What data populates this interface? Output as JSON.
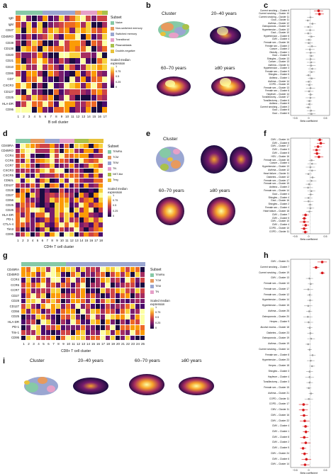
{
  "panels": {
    "a": {
      "letter": "a",
      "xlabel": "B cell cluster",
      "rows": [
        "IgD",
        "IgM",
        "CD27",
        "CD45RO",
        "CD38",
        "CD138",
        "CD20",
        "CD21",
        "CD10",
        "CD86",
        "CD7",
        "CXCR3",
        "CD127",
        "CD25",
        "HLA-DR",
        "CD95"
      ],
      "cols": [
        "1",
        "2",
        "3",
        "4",
        "5",
        "6",
        "7",
        "8",
        "9",
        "10",
        "11",
        "12",
        "13",
        "14",
        "15",
        "16",
        "17"
      ],
      "subset_title": "Subset",
      "subsets": [
        "Naive",
        "Non-switched memory",
        "Switched memory",
        "Transitional",
        "Plasmablasts",
        "Double-negative"
      ],
      "scale_title": "Scaled median expression",
      "scale_ticks": [
        "1",
        "0.75",
        "0.5",
        "0.25",
        "0"
      ]
    },
    "b": {
      "letter": "b",
      "titles": [
        "Cluster",
        "20–40 years",
        "60–70 years",
        "≥80 years"
      ]
    },
    "c": {
      "letter": "c",
      "xlabel": "Beta coefficient",
      "ticks": [
        "−0.5",
        "0",
        "0.5"
      ],
      "labels": [
        "Current smoking – Cluster 6",
        "Current smoking – Cluster 10",
        "Current smoking – Cluster 11",
        "Gout – Cluster 11",
        "Asthma – Cluster 12",
        "Osteoporosis – Cluster 13",
        "Hypertension – Cluster 12",
        "Gout – Cluster 10",
        "Hypertension – Cluster 8",
        "CMV – Cluster 4",
        "Female sex – Cluster 16",
        "Female sex – Cluster 2",
        "Cancer – Cluster 2",
        "Obesity – Cluster 1",
        "Gout – Cluster 5",
        "Shingles – Cluster 13",
        "Cancer – Cluster 13",
        "Asthma – Cluster 11",
        "Hypertension – Cluster 3",
        "Female sex – Cluster 9",
        "Shingles – Cluster 6",
        "Asthma – Cluster 1",
        "Asthma – Cluster 14",
        "COPD – Cluster 10",
        "Female sex – Cluster 13",
        "Female sex – Cluster 6",
        "Hayfever – Cluster 14",
        "Tonsillectomy – Cluster 17",
        "Tonsillectomy – Cluster 6",
        "Asthma – Cluster 8",
        "Current smoking – Cluster 2",
        "Gout – Cluster 8",
        "Gout – Cluster 6"
      ]
    },
    "d": {
      "letter": "d",
      "xlabel": "CD4+ T cell cluster",
      "rows": [
        "CD45RA",
        "CD45RO",
        "CCR4",
        "CCR6",
        "CCR7",
        "CXCR3",
        "CXCR5",
        "CD62L",
        "CD127",
        "CD28",
        "CD27",
        "CD56",
        "CD25",
        "CD26",
        "HLA-DR",
        "PD-1",
        "CTLA-4",
        "Tim3",
        "CD95"
      ],
      "cols": [
        "1",
        "2",
        "3",
        "4",
        "5",
        "6",
        "7",
        "8",
        "9",
        "10",
        "11",
        "12",
        "13",
        "14",
        "15",
        "16",
        "17",
        "18"
      ],
      "subset_title": "Subset",
      "subsets": [
        "TEMRA",
        "TCM",
        "TEM",
        "TN",
        "NKT-like",
        "Treg"
      ],
      "scale_title": "Scaled median expression",
      "scale_ticks": [
        "1",
        "0.75",
        "0.5",
        "0.25",
        "0"
      ]
    },
    "e": {
      "letter": "e",
      "titles": [
        "Cluster",
        "20–40 years",
        "60–70 years",
        "≥80 years"
      ]
    },
    "f": {
      "letter": "f",
      "xlabel": "Beta coefficient",
      "ticks": [
        "−0.5",
        "0",
        "0.5"
      ],
      "labels": [
        "CMV – Cluster 14",
        "CMV – Cluster 6",
        "CMV – Cluster 17",
        "CMV – Cluster 3",
        "CMV – Cluster 8",
        "HSV – Cluster 16",
        "Female sex – Cluster 16",
        "Cancer – Cluster 4",
        "Hypertension – Cluster 13",
        "Asthma – Cluster 12",
        "Heart failure – Cluster 11",
        "Diabetes – Cluster 12",
        "Female sex – Cluster 17",
        "Female sex – Cluster 15",
        "Asthma – Cluster 2",
        "Female sex – Cluster 14",
        "Gout – Cluster 4",
        "Shingles – Cluster 4",
        "Gout – Cluster 16",
        "Shingles – Cluster 2",
        "Female sex – Cluster 4",
        "Heart failure – Cluster 18",
        "CMV – Cluster 7",
        "CMV – Cluster 5",
        "CMV – Cluster 10",
        "CMV – Cluster 4",
        "COPD – Cluster 10",
        "COPD – Cluster 11"
      ]
    },
    "g": {
      "letter": "g",
      "xlabel": "CD8+ T cell cluster",
      "rows": [
        "CD45RA",
        "CD45RO",
        "CCR4",
        "CCR6",
        "CCR7",
        "CD27",
        "CD28",
        "CD127",
        "CD56",
        "CD25",
        "HLA-DR",
        "PD-1",
        "Tim-1",
        "CD95"
      ],
      "cols": [
        "1",
        "2",
        "3",
        "4",
        "5",
        "6",
        "7",
        "8",
        "9",
        "10",
        "11",
        "12",
        "13",
        "14",
        "15",
        "16",
        "17",
        "18",
        "19",
        "20",
        "21",
        "22",
        "23",
        "24",
        "25"
      ],
      "subset_title": "Subset",
      "subsets": [
        "TEMRA",
        "TCM",
        "TEM",
        "TN"
      ],
      "scale_title": "Scaled median expression",
      "scale_ticks": [
        "1",
        "0.75",
        "0.5",
        "0.25",
        "0"
      ]
    },
    "h": {
      "letter": "h",
      "xlabel": "Beta coefficient",
      "ticks": [
        "−0.5",
        "0",
        "0.5"
      ],
      "labels": [
        "CMV – Cluster 21",
        "Current smoking – Cluster 7",
        "Current smoking – Cluster 19",
        "CMV – Cluster 13",
        "Female sex – Cluster 13",
        "Female sex – Cluster 17",
        "Female sex – Cluster 12",
        "Hypertension – Cluster 14",
        "Hypertension – Cluster 15",
        "Asthma – Cluster 25",
        "Osteoporosis – Cluster 20",
        "Herpes – Cluster 9",
        "Alcohol excess – Cluster 18",
        "Diabetes – Cluster 23",
        "Osteoporosis – Cluster 19",
        "Asthma – Cluster 19",
        "Current smoking – Cluster 14",
        "Female sex – Cluster 8",
        "Hypertension – Cluster 23",
        "Herpes – Cluster 18",
        "Shingles – Cluster 3",
        "Hayfever – Cluster 4",
        "Tonsillectomy – Cluster 3",
        "Female sex – Cluster 15",
        "Asthma – Cluster 21",
        "COPD – Cluster 11",
        "COPD – Cluster 17",
        "CMV – Cluster 11",
        "CMV – Cluster 16",
        "CMV – Cluster 22",
        "CMV – Cluster 4",
        "CMV – Cluster 1",
        "CMV – Cluster 8",
        "CMV – Cluster 2",
        "CMV – Cluster 5",
        "CMV – Cluster 24",
        "CMV – Cluster 6",
        "CMV – Cluster 14"
      ]
    },
    "i": {
      "letter": "i",
      "titles": [
        "Cluster",
        "20–40 years",
        "60–70 years",
        "≥80 years"
      ]
    }
  },
  "colors": {
    "subset_a": [
      "#86c9a6",
      "#e79a5e",
      "#9aa6d1",
      "#e6a0c8",
      "#a9c14a",
      "#e8c23a"
    ],
    "subset_d": [
      "#86c9a6",
      "#e79a5e",
      "#9aa6d1",
      "#e6a0c8",
      "#a9c14a",
      "#e8c23a"
    ],
    "subset_g": [
      "#86c9a6",
      "#e79a5e",
      "#9aa6d1",
      "#e6a0c8"
    ],
    "bar_a": [
      "#86c9a6",
      "#86c9a6",
      "#86c9a6",
      "#86c9a6",
      "#86c9a6",
      "#9aa6d1",
      "#9aa6d1",
      "#9aa6d1",
      "#9aa6d1",
      "#9aa6d1",
      "#9aa6d1",
      "#e79a5e",
      "#e6a0c8",
      "#e6a0c8",
      "#e6a0c8",
      "#e8c23a",
      "#a9c14a"
    ],
    "bar_d": [
      "#86c9a6",
      "#86c9a6",
      "#86c9a6",
      "#e79a5e",
      "#e79a5e",
      "#e79a5e",
      "#9aa6d1",
      "#9aa6d1",
      "#9aa6d1",
      "#e6a0c8",
      "#e6a0c8",
      "#e6a0c8",
      "#a9c14a",
      "#a9c14a",
      "#a9c14a",
      "#e8c23a",
      "#e8c23a",
      "#e8c23a"
    ],
    "bar_g": [
      "#86c9a6",
      "#86c9a6",
      "#86c9a6",
      "#86c9a6",
      "#86c9a6",
      "#86c9a6",
      "#86c9a6",
      "#86c9a6",
      "#86c9a6",
      "#9aa6d1",
      "#9aa6d1",
      "#9aa6d1",
      "#9aa6d1",
      "#9aa6d1",
      "#9aa6d1",
      "#9aa6d1",
      "#9aa6d1",
      "#9aa6d1",
      "#9aa6d1",
      "#9aa6d1",
      "#9aa6d1",
      "#9aa6d1",
      "#9aa6d1",
      "#9aa6d1",
      "#9aa6d1"
    ],
    "heat": [
      "#1b0c41",
      "#4a0c6b",
      "#781c6d",
      "#a52c60",
      "#cf4446",
      "#ed6925",
      "#fb9b06",
      "#f7d13d",
      "#fcffa4"
    ],
    "positive": "#d7191c",
    "neutral": "#9e9e9e"
  }
}
